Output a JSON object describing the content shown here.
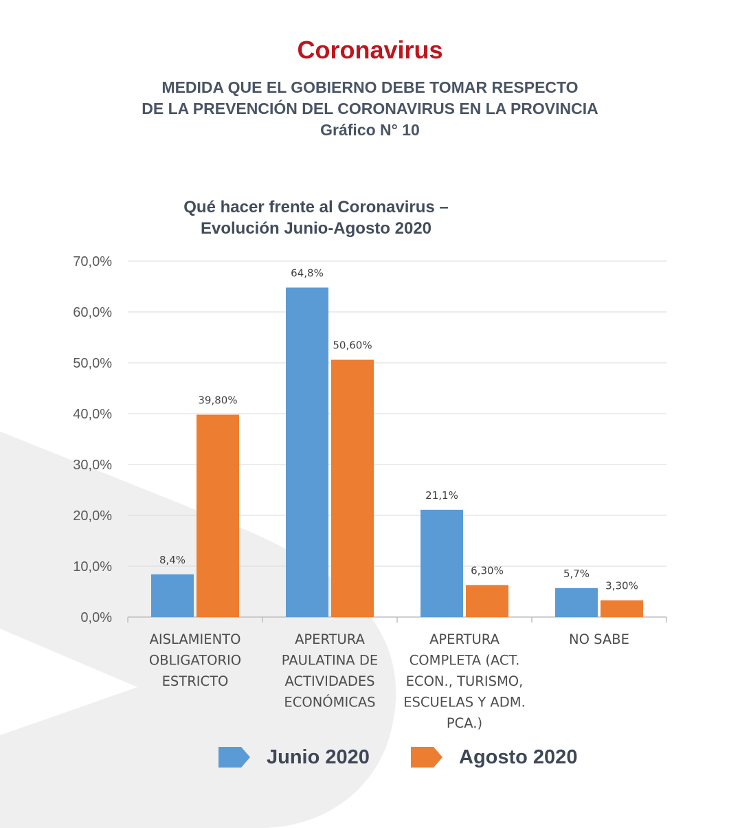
{
  "header": {
    "brand": "Coronavirus",
    "subtitle_lines": [
      "MEDIDA QUE EL GOBIERNO DEBE TOMAR RESPECTO",
      "DE LA PREVENCIÓN DEL CORONAVIRUS EN LA PROVINCIA",
      "Gráfico N° 10"
    ]
  },
  "colors": {
    "brand": "#c0141c",
    "junio": "#5b9bd5",
    "agosto": "#ed7d31",
    "text": "#4a5464",
    "grid": "#d9d9d9"
  },
  "chart_data": {
    "type": "bar",
    "title_lines": [
      "Qué hacer frente al Coronavirus –",
      "Evolución Junio-Agosto 2020"
    ],
    "categories": [
      [
        "AISLAMIENTO",
        "OBLIGATORIO",
        "ESTRICTO"
      ],
      [
        "APERTURA",
        "PAULATINA DE",
        "ACTIVIDADES",
        "ECONÓMICAS"
      ],
      [
        "APERTURA",
        "COMPLETA (ACT.",
        "ECON., TURISMO,",
        "ESCUELAS Y ADM.",
        "PCA.)"
      ],
      [
        "NO SABE"
      ]
    ],
    "series": [
      {
        "name": "Junio 2020",
        "values": [
          8.4,
          64.8,
          21.1,
          5.7
        ],
        "labels": [
          "8,4%",
          "64,8%",
          "21,1%",
          "5,7%"
        ]
      },
      {
        "name": "Agosto 2020",
        "values": [
          39.8,
          50.6,
          6.3,
          3.3
        ],
        "labels": [
          "39,80%",
          "50,60%",
          "6,30%",
          "3,30%"
        ]
      }
    ],
    "ylim": [
      0,
      70
    ],
    "yticks": [
      0,
      10,
      20,
      30,
      40,
      50,
      60,
      70
    ],
    "ytick_labels": [
      "0,0%",
      "10,0%",
      "20,0%",
      "30,0%",
      "40,0%",
      "50,0%",
      "60,0%",
      "70,0%"
    ],
    "grid": true,
    "legend_position": "bottom"
  }
}
